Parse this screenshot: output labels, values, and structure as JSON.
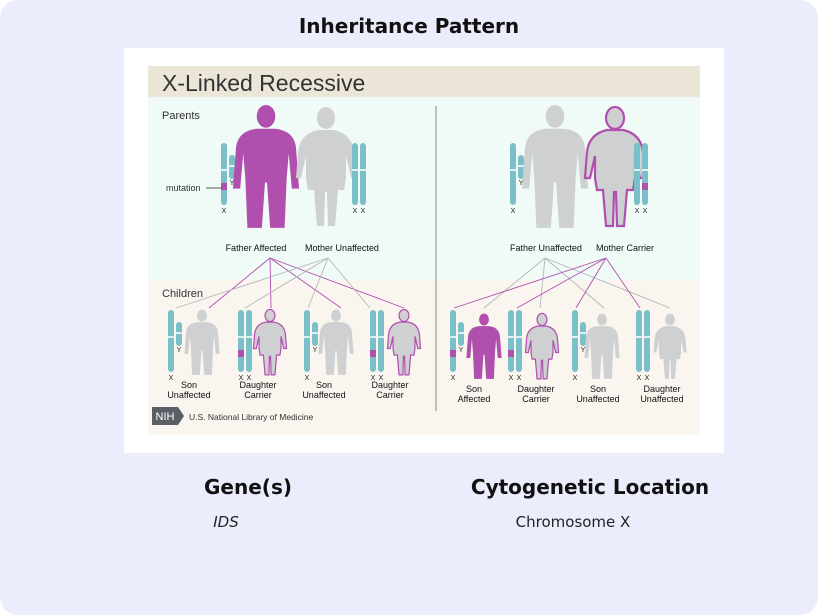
{
  "section": {
    "title": "Inheritance Pattern"
  },
  "diagram": {
    "title": "X-Linked Recessive",
    "row_parents": "Parents",
    "row_children": "Children",
    "mutation_label": "mutation",
    "chrom_x": "X",
    "chrom_y": "Y",
    "left_parents": [
      "Father Affected",
      "Mother Unaffected"
    ],
    "right_parents": [
      "Father Unaffected",
      "Mother Carrier"
    ],
    "left_children": [
      [
        "Son",
        "Unaffected"
      ],
      [
        "Daughter",
        "Carrier"
      ],
      [
        "Son",
        "Unaffected"
      ],
      [
        "Daughter",
        "Carrier"
      ]
    ],
    "right_children": [
      [
        "Son",
        "Affected"
      ],
      [
        "Daughter",
        "Carrier"
      ],
      [
        "Son",
        "Unaffected"
      ],
      [
        "Daughter",
        "Unaffected"
      ]
    ],
    "nih_badge": "NIH",
    "nih_text": "U.S. National Library of Medicine",
    "colors": {
      "affected": "#b04fae",
      "unaffected": "#cfd0d2",
      "chromosome": "#7bbfc8",
      "header_band": "#ece6d8",
      "parents_bg": "#f0faf7",
      "children_bg": "#faf6ef"
    }
  },
  "genes": {
    "title": "Gene(s)",
    "value": "IDS"
  },
  "cytogenetic": {
    "title": "Cytogenetic Location",
    "value": "Chromosome X"
  }
}
